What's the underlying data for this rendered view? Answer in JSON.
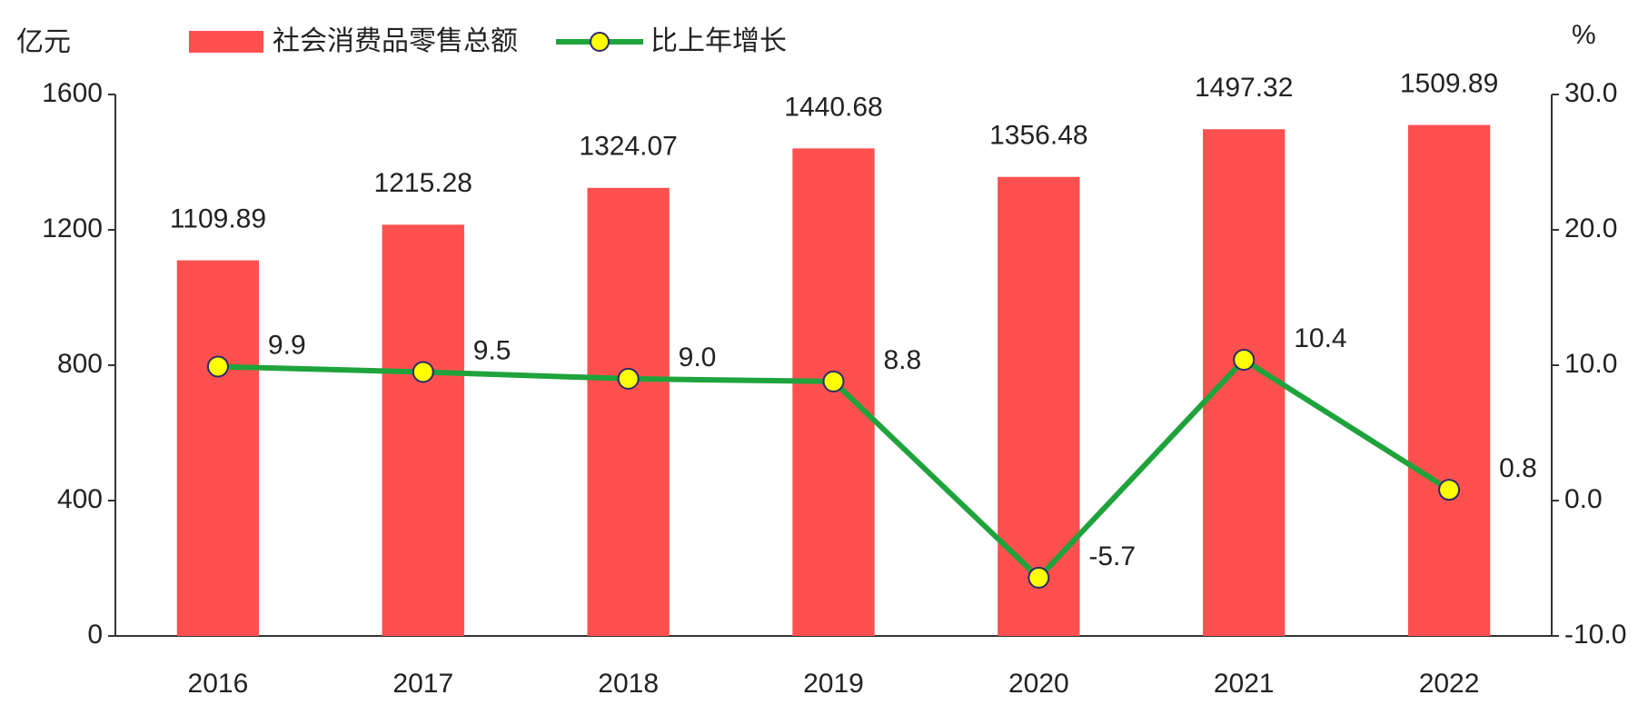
{
  "chart_data": {
    "type": "bar",
    "y_unit": "亿元",
    "y2_unit": "%",
    "categories": [
      "2016",
      "2017",
      "2018",
      "2019",
      "2020",
      "2021",
      "2022"
    ],
    "series": [
      {
        "name": "社会消费品零售总额",
        "type": "bar",
        "color": "#ff5050",
        "values": [
          1109.89,
          1215.28,
          1324.07,
          1440.68,
          1356.48,
          1497.32,
          1509.89
        ]
      },
      {
        "name": "比上年增长",
        "type": "line",
        "axis": "y2",
        "color": "#1fa33c",
        "marker_color": "#ffff00",
        "values": [
          9.9,
          9.5,
          9.0,
          8.8,
          -5.7,
          10.4,
          0.8
        ],
        "value_labels": [
          "9.9",
          "9.5",
          "9.0",
          "8.8",
          "-5.7",
          "10.4",
          "0.8"
        ]
      }
    ],
    "ylim": [
      0,
      1600
    ],
    "yticks": [
      0,
      400,
      800,
      1200,
      1600
    ],
    "y2lim": [
      -10,
      30
    ],
    "y2ticks": [
      {
        "value": -10,
        "label": "-10.0"
      },
      {
        "value": 0,
        "label": "0.0"
      },
      {
        "value": 10,
        "label": "10.0"
      },
      {
        "value": 20,
        "label": "20.0"
      },
      {
        "value": 30,
        "label": "30.0"
      }
    ],
    "grid": false
  }
}
